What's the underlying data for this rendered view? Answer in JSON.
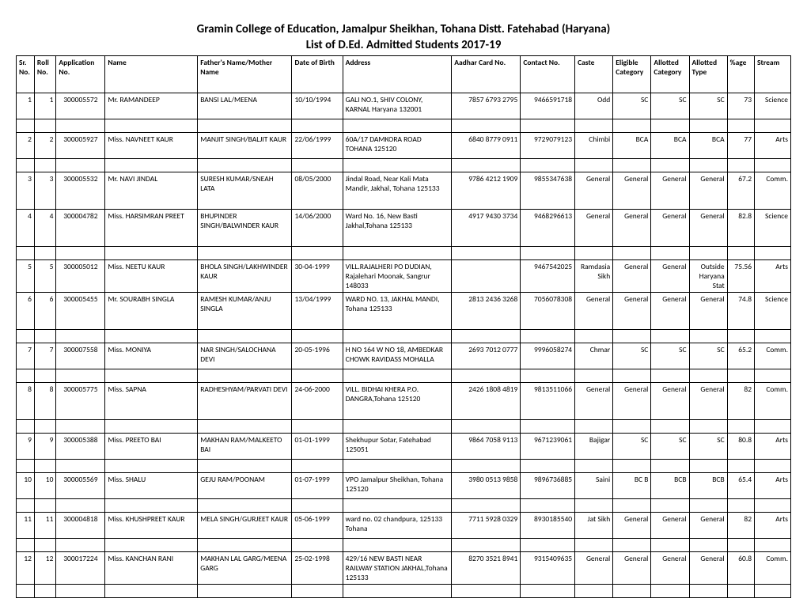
{
  "title": "Gramin College of Education, Jamalpur Sheikhan, Tohana Distt. Fatehabad (Haryana)",
  "subtitle": "List of D.Ed. Admitted Students 2017-19",
  "columns": [
    "Sr. No.",
    "Roll No.",
    "Application No.",
    "Name",
    "Father's Name/Mother Name",
    "Date of Birth",
    "Address",
    "Aadhar Card No.",
    "Contact No.",
    "Caste",
    "Eligible Category",
    "Allotted Category",
    "Allotted Type",
    "%age",
    "Stream"
  ],
  "col_align": [
    "right",
    "right",
    "center",
    "left",
    "left",
    "left",
    "left",
    "right",
    "right",
    "right",
    "right",
    "right",
    "right",
    "right",
    "right"
  ],
  "col_classes": [
    "c-sr",
    "c-roll",
    "c-app",
    "c-name",
    "c-father",
    "c-dob",
    "c-addr",
    "c-aadhar",
    "c-contact",
    "c-caste",
    "c-elig",
    "c-allotc",
    "c-allott",
    "c-age",
    "c-stream"
  ],
  "heights": [
    28,
    28,
    42,
    42,
    28,
    42,
    28,
    42,
    28,
    28,
    28,
    28,
    42
  ],
  "spacers_after": [
    1,
    2,
    4,
    6,
    7,
    8,
    9,
    10,
    11,
    12
  ],
  "rows": [
    [
      "1",
      "1",
      "300005572",
      "Mr. RAMANDEEP",
      "BANSI LAL/MEENA",
      "10/10/1994",
      "GALI NO.1, SHIV COLONY, KARNAL Haryana 132001",
      "7857 6793 2795",
      "9466591718",
      "Odd",
      "SC",
      "SC",
      "SC",
      "73",
      "Science"
    ],
    [
      "2",
      "2",
      "300005927",
      "Miss. NAVNEET KAUR",
      "MANJIT SINGH/BALJIT KAUR",
      "22/06/1999",
      "60A/17 DAMKORA ROAD TOHANA 125120",
      "6840 8779 0911",
      "9729079123",
      "Chimbi",
      "BCA",
      "BCA",
      "BCA",
      "77",
      "Arts"
    ],
    [
      "3",
      "3",
      "300005532",
      "Mr. NAVI JINDAL",
      "SURESH KUMAR/SNEAH LATA",
      "08/05/2000",
      "Jindal Road, Near Kali Mata Mandir, Jakhal, Tohana 125133",
      "9786 4212 1909",
      "9855347638",
      "General",
      "General",
      "General",
      "General",
      "67.2",
      "Comm."
    ],
    [
      "4",
      "4",
      "300004782",
      "Miss. HARSIMRAN PREET",
      "BHUPINDER SINGH/BALWINDER KAUR",
      "14/06/2000",
      "Ward No. 16, New Basti Jakhal,Tohana 125133",
      "4917 9430 3734",
      "9468296613",
      "General",
      "General",
      "General",
      "General",
      "82.8",
      "Science"
    ],
    [
      "5",
      "5",
      "300005012",
      "Miss. NEETU KAUR",
      "BHOLA SINGH/LAKHWINDER KAUR",
      "30-04-1999",
      "VILL.RAJALHERI PO DUDIAN, Rajalehari Moonak, Sangrur 148033",
      "",
      "9467542025",
      "Ramdasia Sikh",
      "General",
      "General",
      "Outside Haryana Stat",
      "75.56",
      "Arts"
    ],
    [
      "6",
      "6",
      "300005455",
      "Mr. SOURABH SINGLA",
      "RAMESH KUMAR/ANJU SINGLA",
      "13/04/1999",
      "WARD NO. 13, JAKHAL MANDI, Tohana 125133",
      "2813 2436 3268",
      "7056078308",
      "General",
      "General",
      "General",
      "General",
      "74.8",
      "Science"
    ],
    [
      "7",
      "7",
      "300007558",
      "Miss. MONIYA",
      "NAR SINGH/SALOCHANA DEVI",
      "20-05-1996",
      "H NO 164 W NO 18, AMBEDKAR CHOWK RAVIDASS MOHALLA",
      "2693 7012 0777",
      "9996058274",
      "Chmar",
      "SC",
      "SC",
      "SC",
      "65.2",
      "Comm."
    ],
    [
      "8",
      "8",
      "300005775",
      "Miss. SAPNA",
      "RADHESHYAM/PARVATI DEVI",
      "24-06-2000",
      "VILL. BIDHAI KHERA P.O. DANGRA,Tohana 125120",
      "2426 1808 4819",
      "9813511066",
      "General",
      "General",
      "General",
      "General",
      "82",
      "Comm."
    ],
    [
      "9",
      "9",
      "300005388",
      "Miss. PREETO BAI",
      "MAKHAN RAM/MALKEETO BAI",
      "01-01-1999",
      "Shekhupur Sotar, Fatehabad 125051",
      "9864 7058 9113",
      "9671239061",
      "Bajigar",
      "SC",
      "SC",
      "SC",
      "80.8",
      "Arts"
    ],
    [
      "10",
      "10",
      "300005569",
      "Miss. SHALU",
      "GEJU RAM/POONAM",
      "01-07-1999",
      "VPO Jamalpur Sheikhan, Tohana 125120",
      "3980 0513 9858",
      "9896736885",
      "Saini",
      "BC B",
      "BCB",
      "BCB",
      "65.4",
      "Arts"
    ],
    [
      "11",
      "11",
      "300004818",
      "Miss. KHUSHPREET KAUR",
      "MELA SINGH/GURJEET KAUR",
      "05-06-1999",
      "ward no. 02 chandpura, 125133 Tohana",
      "7711 5928 0329",
      "8930185540",
      "Jat Sikh",
      "General",
      "General",
      "General",
      "82",
      "Arts"
    ],
    [
      "12",
      "12",
      "300017224",
      "Miss. KANCHAN RANI",
      "MAKHAN LAL GARG/MEENA GARG",
      "25-02-1998",
      "429/16 NEW BASTI NEAR RAILWAY STATION JAKHAL,Tohana 125133",
      "8270 3521 8941",
      "9315409635",
      "General",
      "General",
      "General",
      "General",
      "60.8",
      "Comm."
    ]
  ]
}
